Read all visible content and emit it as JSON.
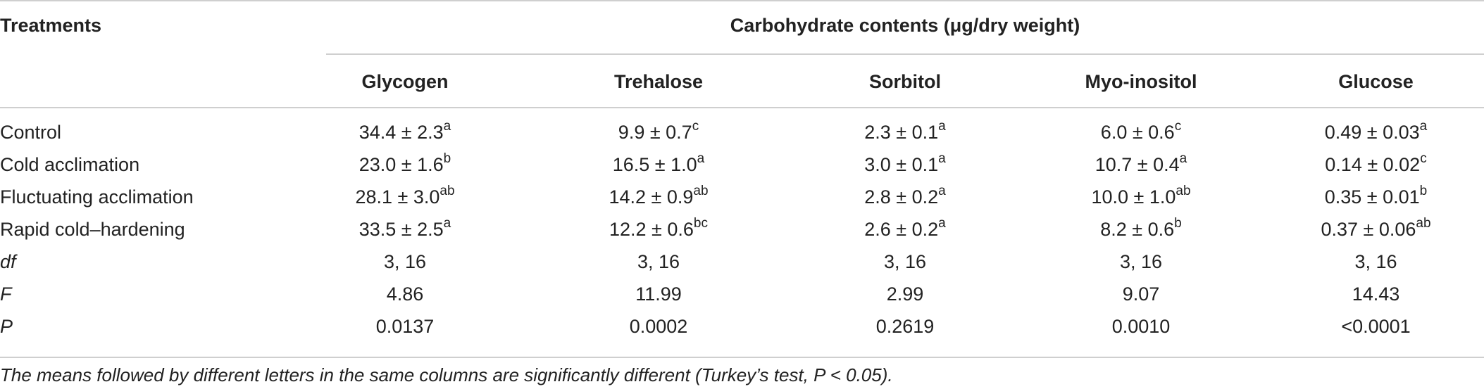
{
  "table": {
    "treatments_header": "Treatments",
    "span_header": "Carbohydrate contents (μg/dry weight)",
    "columns": [
      "Glycogen",
      "Trehalose",
      "Sorbitol",
      "Myo-inositol",
      "Glucose"
    ],
    "rows": [
      {
        "label": "Control",
        "cells": [
          {
            "v": "34.4 ± 2.3",
            "s": "a"
          },
          {
            "v": "9.9 ± 0.7",
            "s": "c"
          },
          {
            "v": "2.3 ± 0.1",
            "s": "a"
          },
          {
            "v": "6.0 ± 0.6",
            "s": "c"
          },
          {
            "v": "0.49 ± 0.03",
            "s": "a"
          }
        ]
      },
      {
        "label": "Cold acclimation",
        "cells": [
          {
            "v": "23.0 ± 1.6",
            "s": "b"
          },
          {
            "v": "16.5 ± 1.0",
            "s": "a"
          },
          {
            "v": "3.0 ± 0.1",
            "s": "a"
          },
          {
            "v": "10.7 ± 0.4",
            "s": "a"
          },
          {
            "v": "0.14 ± 0.02",
            "s": "c"
          }
        ]
      },
      {
        "label": "Fluctuating acclimation",
        "cells": [
          {
            "v": "28.1 ± 3.0",
            "s": "ab"
          },
          {
            "v": "14.2 ± 0.9",
            "s": "ab"
          },
          {
            "v": "2.8 ± 0.2",
            "s": "a"
          },
          {
            "v": "10.0 ± 1.0",
            "s": "ab"
          },
          {
            "v": "0.35 ± 0.01",
            "s": "b"
          }
        ]
      },
      {
        "label": "Rapid cold–hardening",
        "cells": [
          {
            "v": "33.5 ± 2.5",
            "s": "a"
          },
          {
            "v": "12.2 ± 0.6",
            "s": "bc"
          },
          {
            "v": "2.6 ± 0.2",
            "s": "a"
          },
          {
            "v": "8.2 ± 0.6",
            "s": "b"
          },
          {
            "v": "0.37 ± 0.06",
            "s": "ab"
          }
        ]
      },
      {
        "label": "df",
        "cells": [
          {
            "v": "3, 16"
          },
          {
            "v": "3, 16"
          },
          {
            "v": "3, 16"
          },
          {
            "v": "3, 16"
          },
          {
            "v": "3, 16"
          }
        ]
      },
      {
        "label": "F",
        "cells": [
          {
            "v": "4.86"
          },
          {
            "v": "11.99"
          },
          {
            "v": "2.99"
          },
          {
            "v": "9.07"
          },
          {
            "v": "14.43"
          }
        ]
      },
      {
        "label": "P",
        "cells": [
          {
            "v": "0.0137"
          },
          {
            "v": "0.0002"
          },
          {
            "v": "0.2619"
          },
          {
            "v": "0.0010"
          },
          {
            "v": "<0.0001"
          }
        ]
      }
    ],
    "footnote": "The means followed by different letters in the same columns are significantly different (Turkey’s test, P < 0.05)."
  }
}
